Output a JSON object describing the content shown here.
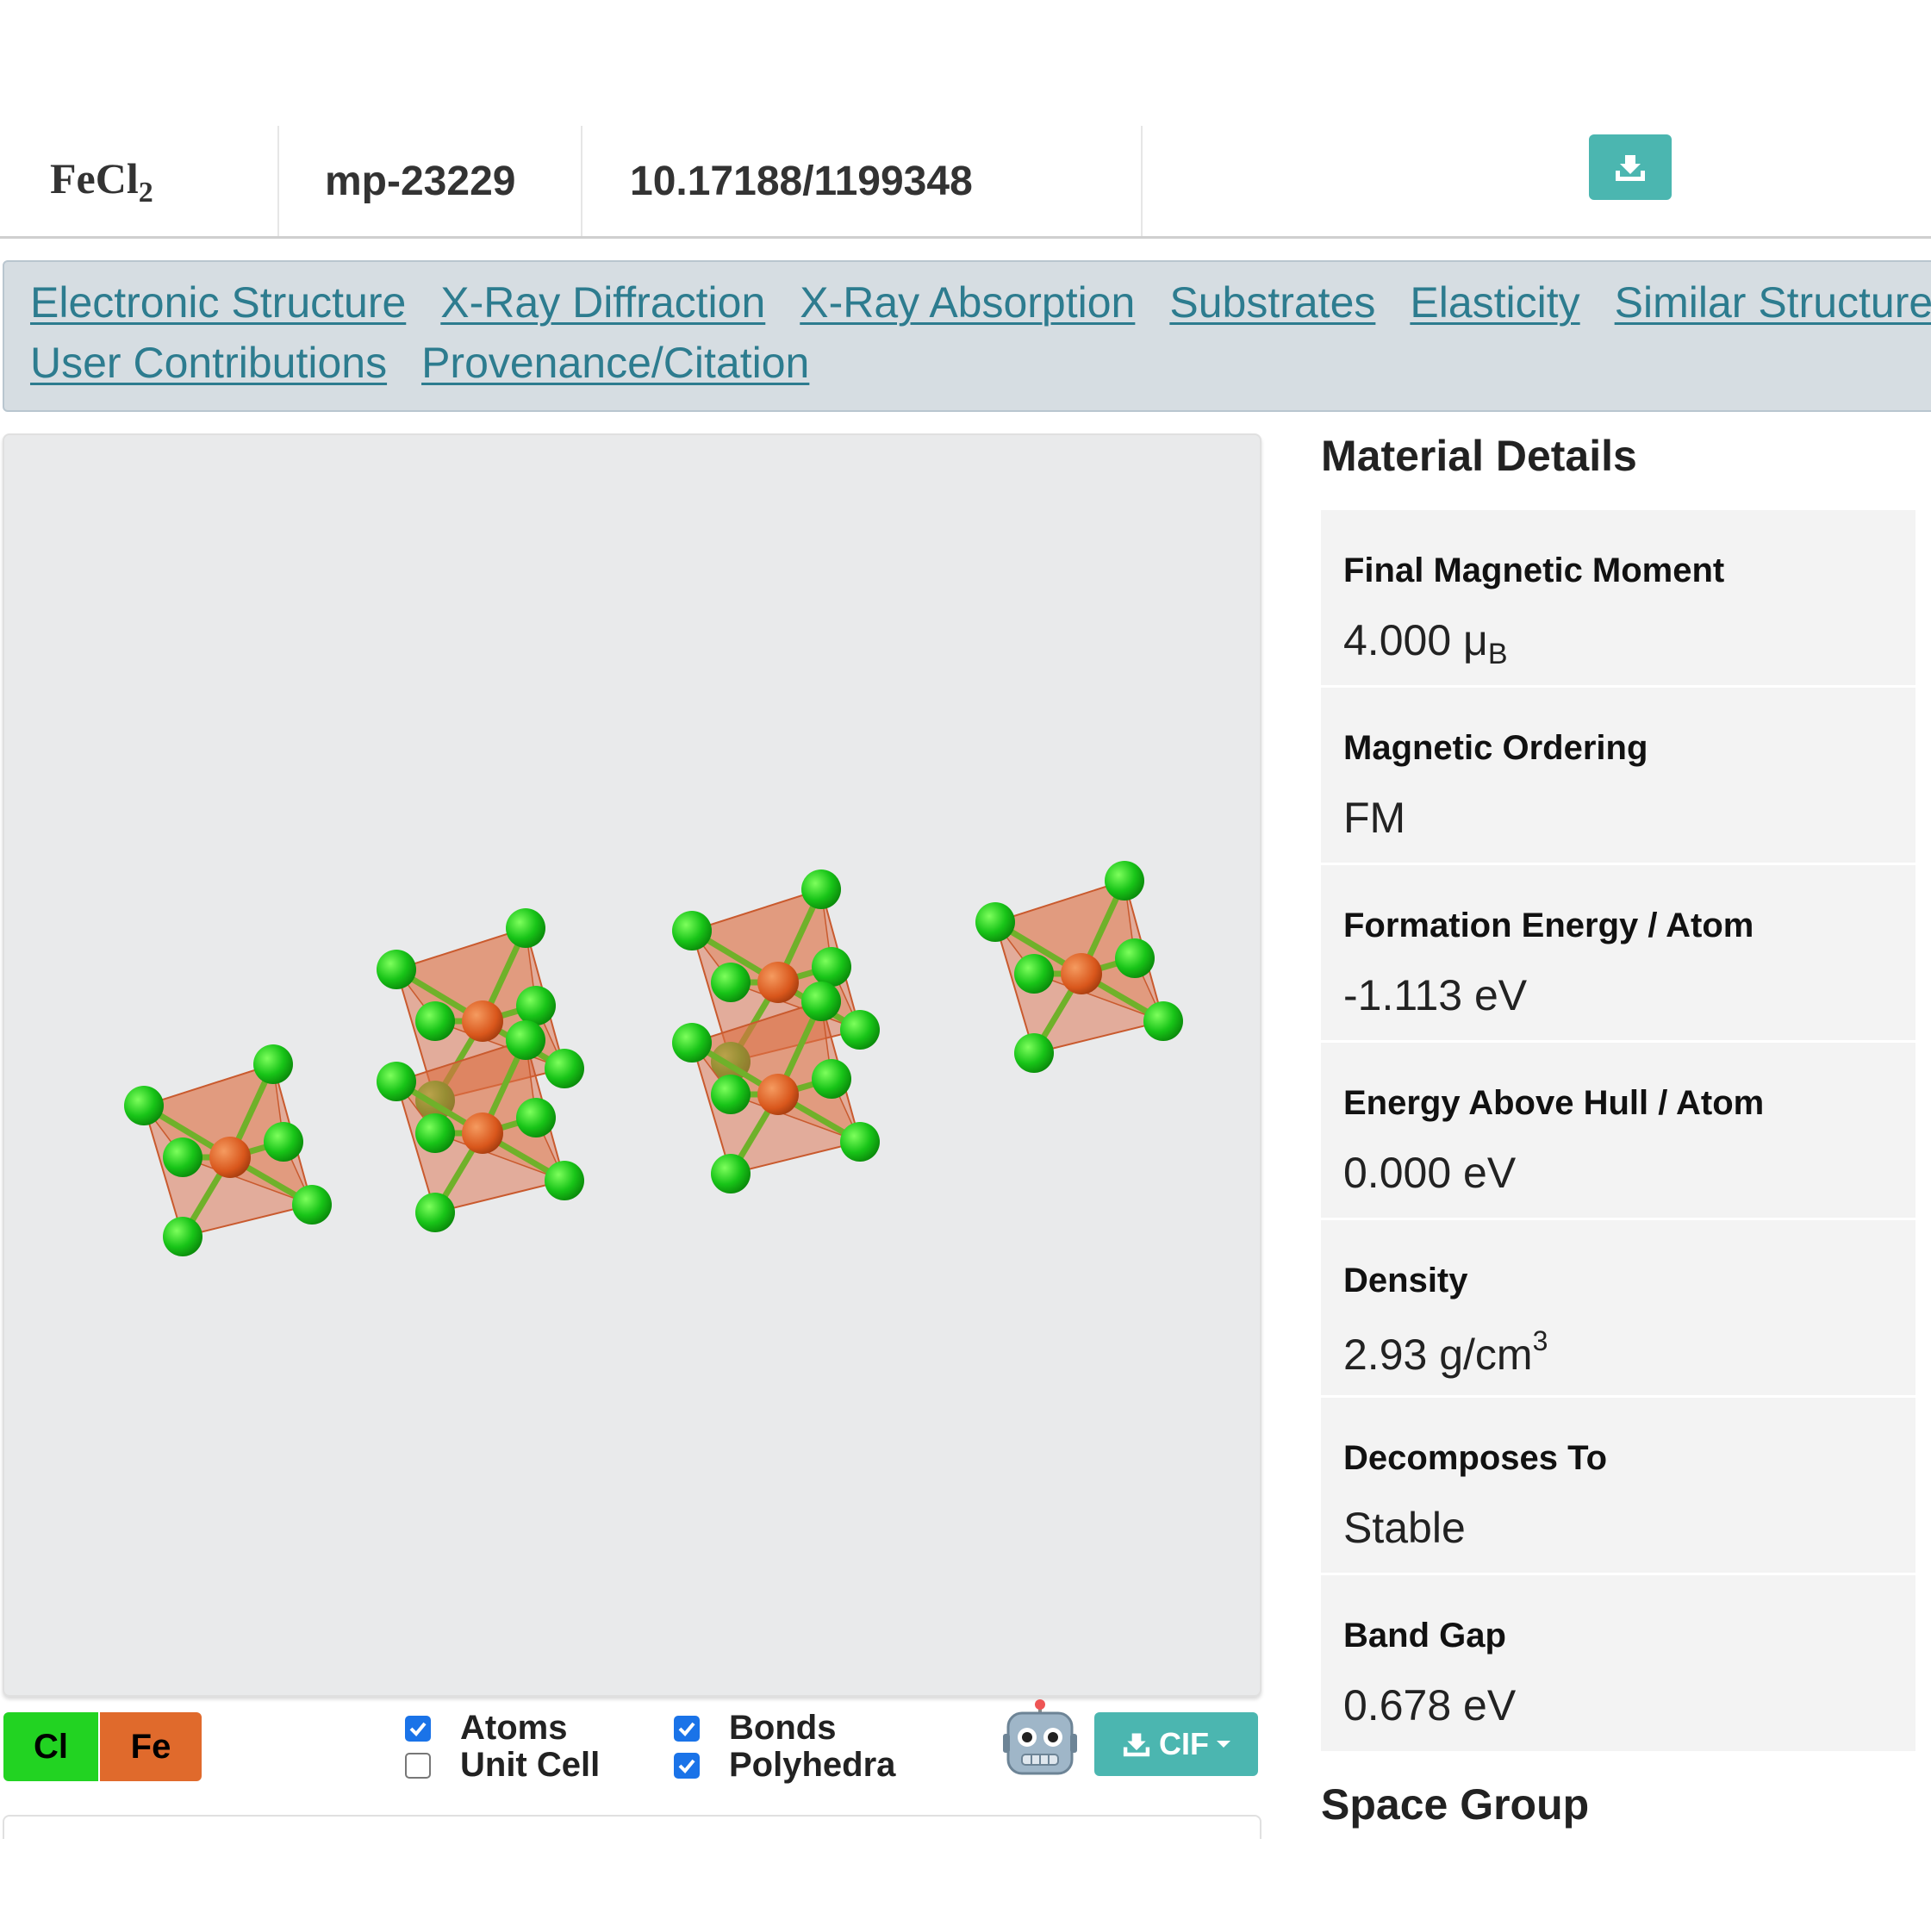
{
  "header": {
    "formula_base": "FeCl",
    "formula_sub": "2",
    "material_id": "mp-23229",
    "doi": "10.17188/1199348",
    "download_icon": "download-icon"
  },
  "nav": {
    "row1": [
      "Electronic Structure",
      "X-Ray Diffraction",
      "X-Ray Absorption",
      "Substrates",
      "Elasticity",
      "Similar Structures"
    ],
    "row2": [
      "User Contributions",
      "Provenance/Citation"
    ]
  },
  "viewer": {
    "legend": [
      {
        "symbol": "Cl",
        "color": "#22d322"
      },
      {
        "symbol": "Fe",
        "color": "#e06a2c"
      }
    ],
    "options": {
      "atoms": {
        "label": "Atoms",
        "checked": true
      },
      "unit_cell": {
        "label": "Unit Cell",
        "checked": false
      },
      "bonds": {
        "label": "Bonds",
        "checked": true
      },
      "polyhedra": {
        "label": "Polyhedra",
        "checked": true
      }
    },
    "robot_icon": "robot-icon",
    "export_label": "CIF"
  },
  "details": {
    "title": "Material Details",
    "properties": [
      {
        "label": "Final Magnetic Moment",
        "value": "4.000 μ",
        "sub": "B"
      },
      {
        "label": "Magnetic Ordering",
        "value": "FM"
      },
      {
        "label": "Formation Energy / Atom",
        "value": "-1.113 eV"
      },
      {
        "label": "Energy Above Hull / Atom",
        "value": "0.000 eV"
      },
      {
        "label": "Density",
        "value": "2.93 g/cm",
        "sup": "3"
      },
      {
        "label": "Decomposes To",
        "value": "Stable"
      },
      {
        "label": "Band Gap",
        "value": "0.678 eV"
      }
    ],
    "next_section": "Space Group"
  },
  "colors": {
    "accent": "#4bb6b0",
    "link": "#2d7c8f",
    "chlorine": "#22d322",
    "iron": "#e06a2c"
  }
}
